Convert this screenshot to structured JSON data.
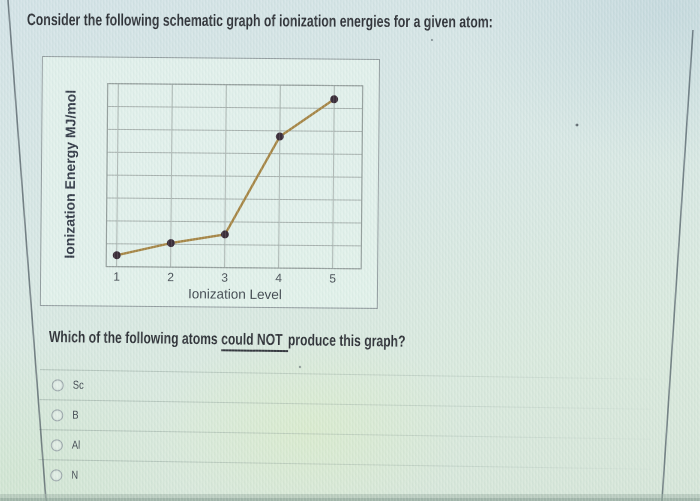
{
  "page": {
    "title": "Consider the following schematic graph of ionization energies for a given atom:",
    "question": {
      "prefix": "Which of the following atoms ",
      "emphasis": "could NOT",
      "suffix": "produce this graph?"
    },
    "options": [
      {
        "label": "Sc",
        "selected": false
      },
      {
        "label": "B",
        "selected": false
      },
      {
        "label": "Al",
        "selected": false
      },
      {
        "label": "N",
        "selected": false
      }
    ]
  },
  "chart_data": {
    "type": "line",
    "title": "",
    "xlabel": "Ionization Level",
    "ylabel": "Ionization Energy MJ/mol",
    "x": [
      1,
      2,
      3,
      4,
      5
    ],
    "values": [
      0.5,
      1.05,
      1.45,
      5.75,
      7.4
    ],
    "ylim": [
      0,
      8
    ],
    "y_gridline_count": 8,
    "y_tick_labels_shown": false,
    "grid": true,
    "legend": "none",
    "line_color": "#a2803d",
    "marker_color": "#31222f"
  },
  "colors": {
    "background_top": "#d2e2e6",
    "background_bottom": "#d5e5d8",
    "panel": "#e4f2ec",
    "panel_border": "#8e989b",
    "gridline": "#a4aeab",
    "text_primary": "#26292f",
    "accent_line": "#a2803d"
  }
}
